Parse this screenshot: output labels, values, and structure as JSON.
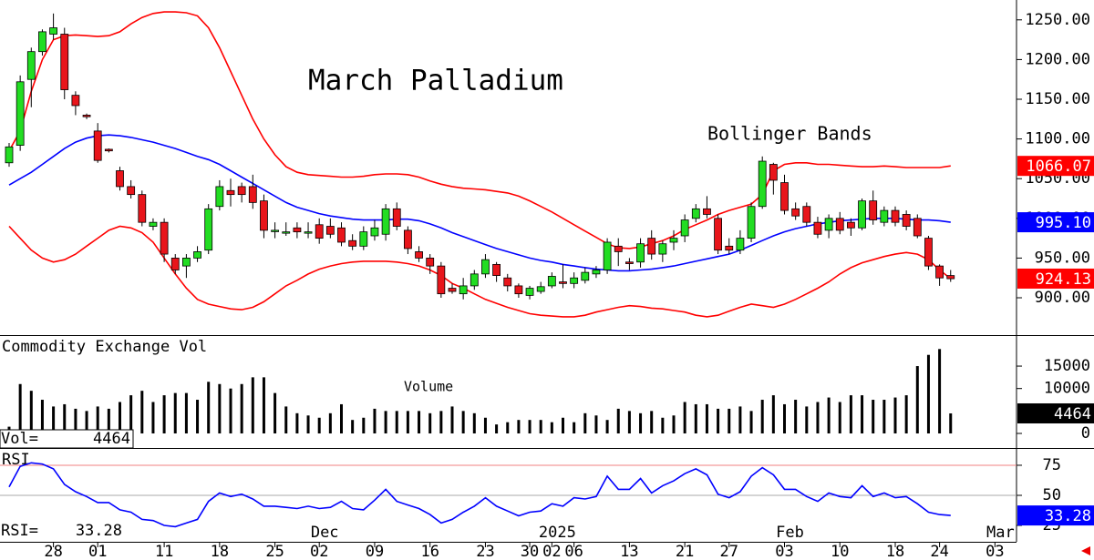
{
  "chart_data": [
    {
      "type": "candlestick",
      "title": "March Palladium",
      "annotation": "Bollinger Bands",
      "up_color": "#22dd22",
      "down_color": "#e8151b",
      "open": [
        1070,
        1092,
        1175,
        1210,
        1232,
        1232,
        1155,
        1130,
        1110,
        1087,
        1060,
        1040,
        1030,
        990,
        995,
        950,
        940,
        950,
        960,
        1015,
        1035,
        1040,
        1040,
        1022,
        985,
        983,
        988,
        983,
        992,
        990,
        988,
        972,
        965,
        978,
        980,
        1012,
        985,
        958,
        950,
        940,
        912,
        905,
        915,
        930,
        942,
        925,
        915,
        903,
        908,
        915,
        920,
        918,
        922,
        930,
        935,
        965,
        945,
        945,
        975,
        955,
        970,
        978,
        1000,
        1012,
        1000,
        965,
        960,
        975,
        1015,
        1068,
        1045,
        1012,
        1015,
        995,
        985,
        1000,
        995,
        988,
        1022,
        995,
        1010,
        1005,
        1000,
        975,
        940,
        928,
        null,
        null,
        null,
        null
      ],
      "high": [
        1095,
        1180,
        1215,
        1238,
        1258,
        1240,
        1160,
        1132,
        1120,
        1088,
        1065,
        1048,
        1035,
        1000,
        1000,
        955,
        955,
        965,
        1018,
        1048,
        1050,
        1045,
        1055,
        1030,
        995,
        995,
        995,
        995,
        1000,
        1000,
        995,
        980,
        990,
        998,
        1018,
        1020,
        990,
        965,
        955,
        945,
        918,
        925,
        935,
        955,
        945,
        930,
        918,
        915,
        920,
        932,
        942,
        932,
        938,
        940,
        975,
        975,
        950,
        975,
        985,
        972,
        985,
        1005,
        1018,
        1028,
        1005,
        975,
        985,
        1020,
        1078,
        1070,
        1055,
        1020,
        1020,
        1002,
        1005,
        1008,
        1000,
        1025,
        1035,
        1015,
        1015,
        1010,
        1005,
        978,
        942,
        935,
        null,
        null,
        null,
        null
      ],
      "low": [
        1065,
        1085,
        1140,
        1205,
        1225,
        1150,
        1130,
        1125,
        1070,
        1083,
        1035,
        1025,
        990,
        985,
        945,
        930,
        925,
        945,
        955,
        1010,
        1015,
        1020,
        1012,
        975,
        975,
        978,
        975,
        975,
        968,
        975,
        965,
        960,
        960,
        972,
        972,
        985,
        955,
        945,
        930,
        900,
        905,
        898,
        910,
        925,
        920,
        908,
        900,
        898,
        905,
        912,
        912,
        912,
        918,
        925,
        930,
        940,
        935,
        938,
        948,
        945,
        960,
        970,
        995,
        1000,
        955,
        955,
        955,
        970,
        1012,
        1030,
        1005,
        998,
        990,
        975,
        975,
        980,
        978,
        985,
        992,
        990,
        990,
        985,
        975,
        935,
        915,
        920,
        null,
        null,
        null,
        null
      ],
      "close": [
        1090,
        1172,
        1210,
        1235,
        1240,
        1162,
        1142,
        1128,
        1073,
        1085,
        1040,
        1030,
        995,
        995,
        955,
        935,
        950,
        958,
        1012,
        1040,
        1030,
        1030,
        1020,
        985,
        985,
        983,
        983,
        983,
        975,
        980,
        970,
        965,
        983,
        988,
        1012,
        990,
        962,
        950,
        940,
        905,
        908,
        915,
        930,
        948,
        928,
        915,
        905,
        912,
        914,
        927,
        918,
        925,
        932,
        935,
        970,
        958,
        943,
        968,
        955,
        968,
        975,
        998,
        1012,
        1005,
        960,
        960,
        975,
        1015,
        1072,
        1048,
        1010,
        1003,
        995,
        980,
        1000,
        985,
        988,
        1022,
        998,
        1010,
        995,
        990,
        978,
        940,
        925,
        924,
        null,
        null,
        null,
        null
      ],
      "series": [
        {
          "color": "#ff0000",
          "last_label": "1066.07",
          "values": [
            1085,
            1110,
            1160,
            1200,
            1225,
            1230,
            1231,
            1230,
            1229,
            1230,
            1235,
            1245,
            1253,
            1258,
            1260,
            1260,
            1259,
            1255,
            1240,
            1215,
            1185,
            1155,
            1125,
            1100,
            1080,
            1065,
            1058,
            1055,
            1054,
            1053,
            1052,
            1052,
            1053,
            1055,
            1056,
            1056,
            1055,
            1052,
            1047,
            1043,
            1040,
            1038,
            1037,
            1036,
            1034,
            1032,
            1028,
            1022,
            1015,
            1008,
            1000,
            992,
            984,
            976,
            968,
            963,
            962,
            964,
            968,
            972,
            978,
            986,
            992,
            998,
            1005,
            1010,
            1014,
            1018,
            1030,
            1060,
            1068,
            1070,
            1070,
            1068,
            1068,
            1067,
            1066,
            1065,
            1065,
            1066,
            1065,
            1064,
            1064,
            1064,
            1064,
            1066.07,
            null,
            null,
            null,
            null
          ]
        },
        {
          "color": "#0000ff",
          "last_label": "995.10",
          "values": [
            1042,
            1050,
            1058,
            1068,
            1078,
            1088,
            1096,
            1101,
            1104,
            1105,
            1104,
            1102,
            1099,
            1096,
            1092,
            1088,
            1083,
            1078,
            1074,
            1068,
            1060,
            1052,
            1044,
            1036,
            1028,
            1020,
            1014,
            1010,
            1006,
            1003,
            1001,
            999,
            998,
            998,
            998,
            999,
            999,
            997,
            993,
            988,
            982,
            977,
            972,
            967,
            962,
            958,
            954,
            950,
            947,
            945,
            942,
            940,
            938,
            936,
            935,
            934,
            934,
            935,
            936,
            938,
            940,
            943,
            946,
            949,
            952,
            955,
            960,
            966,
            972,
            978,
            983,
            987,
            990,
            993,
            995,
            997,
            998,
            999,
            1000,
            1000,
            1000,
            999,
            998,
            998,
            997,
            995.1,
            null,
            null,
            null,
            null
          ]
        },
        {
          "color": "#ff0000",
          "last_label": "924.13",
          "values": [
            990,
            975,
            960,
            950,
            945,
            948,
            955,
            965,
            975,
            985,
            990,
            988,
            982,
            970,
            950,
            930,
            912,
            898,
            892,
            889,
            886,
            885,
            888,
            895,
            905,
            915,
            922,
            930,
            936,
            940,
            943,
            945,
            946,
            946,
            946,
            945,
            943,
            940,
            935,
            928,
            918,
            912,
            905,
            898,
            893,
            888,
            884,
            880,
            878,
            877,
            876,
            876,
            878,
            882,
            885,
            888,
            890,
            889,
            887,
            886,
            884,
            882,
            878,
            876,
            878,
            883,
            888,
            892,
            890,
            888,
            892,
            898,
            905,
            912,
            920,
            930,
            938,
            944,
            948,
            952,
            955,
            957,
            955,
            948,
            935,
            924.13,
            null,
            null,
            null,
            null
          ]
        }
      ],
      "ylim": [
        853,
        1275
      ],
      "yticks": [
        {
          "value": 900,
          "label": "900.00"
        },
        {
          "value": 950,
          "label": "950.00"
        },
        {
          "value": 1000,
          "label": "1000.00"
        },
        {
          "value": 1050,
          "label": "1050.00"
        },
        {
          "value": 1100,
          "label": "1100.00"
        },
        {
          "value": 1150,
          "label": "1150.00"
        },
        {
          "value": 1200,
          "label": "1200.00"
        },
        {
          "value": 1250,
          "label": "1250.00"
        }
      ]
    },
    {
      "type": "bar",
      "title": "Commodity Exchange Vol",
      "annotation": "Volume",
      "readout_label": "Vol=",
      "color": "#000000",
      "values": [
        1500,
        11000,
        9500,
        7500,
        6000,
        6500,
        5500,
        5000,
        6000,
        5500,
        7000,
        8500,
        9500,
        7000,
        8500,
        9000,
        9000,
        7500,
        11500,
        11000,
        10000,
        11000,
        12500,
        12500,
        9000,
        6000,
        4500,
        4000,
        3500,
        4500,
        6500,
        3000,
        3500,
        5500,
        5000,
        5000,
        5000,
        5000,
        4500,
        5000,
        6000,
        5000,
        4500,
        3500,
        2000,
        2500,
        3000,
        3000,
        3000,
        2500,
        3500,
        2500,
        4500,
        4000,
        3000,
        5500,
        5000,
        4500,
        5000,
        3500,
        4000,
        7000,
        6500,
        6500,
        5500,
        5500,
        6000,
        5000,
        7500,
        8500,
        6500,
        7500,
        6000,
        7000,
        8000,
        7000,
        8500,
        8500,
        7500,
        7500,
        8000,
        8500,
        15000,
        17500,
        18800,
        4464,
        null,
        null,
        null,
        null
      ],
      "ylim": [
        0,
        21500
      ],
      "yticks": [
        0,
        10000,
        15000
      ]
    },
    {
      "type": "line",
      "title": "RSI",
      "readout_label": "RSI=",
      "color": "#0000ff",
      "values": [
        57,
        74,
        77,
        76,
        72,
        59,
        53,
        49,
        44,
        44,
        38,
        36,
        30,
        29,
        25,
        24,
        27,
        30,
        45,
        52,
        49,
        51,
        47,
        41,
        41,
        40,
        39,
        41,
        39,
        40,
        45,
        39,
        38,
        46,
        55,
        45,
        42,
        39,
        34,
        27,
        30,
        36,
        41,
        48,
        41,
        37,
        33,
        36,
        37,
        43,
        41,
        48,
        47,
        49,
        66,
        55,
        55,
        64,
        52,
        58,
        62,
        68,
        72,
        67,
        51,
        48,
        53,
        66,
        73,
        67,
        55,
        55,
        49,
        45,
        52,
        49,
        48,
        58,
        49,
        52,
        48,
        49,
        43,
        36,
        34,
        33.28,
        null,
        null,
        null,
        null
      ],
      "ylim": [
        11.4,
        88.6
      ],
      "yticks": [
        25,
        50,
        75
      ],
      "grid_colors": [
        null,
        "#aaaaaa",
        "#f08080"
      ],
      "categories": [
        null,
        null,
        null,
        null,
        "28",
        null,
        null,
        null,
        "01",
        null,
        null,
        null,
        null,
        null,
        "11",
        null,
        null,
        null,
        null,
        "18",
        null,
        null,
        null,
        null,
        "25",
        null,
        null,
        null,
        "02",
        null,
        null,
        null,
        null,
        "09",
        null,
        null,
        null,
        null,
        "16",
        null,
        null,
        null,
        null,
        "23",
        null,
        null,
        null,
        "30",
        null,
        "02",
        null,
        "06",
        null,
        null,
        null,
        null,
        "13",
        null,
        null,
        null,
        null,
        "21",
        null,
        null,
        null,
        "27",
        null,
        null,
        null,
        null,
        "03",
        null,
        null,
        null,
        null,
        "10",
        null,
        null,
        null,
        null,
        "18",
        null,
        null,
        null,
        "24",
        null,
        null,
        null,
        null,
        "03"
      ],
      "months": [
        null,
        null,
        null,
        null,
        null,
        null,
        null,
        null,
        null,
        null,
        null,
        null,
        null,
        null,
        null,
        null,
        null,
        null,
        null,
        null,
        null,
        null,
        null,
        null,
        null,
        null,
        null,
        null,
        "Dec",
        null,
        null,
        null,
        null,
        null,
        null,
        null,
        null,
        null,
        null,
        null,
        null,
        null,
        null,
        null,
        null,
        null,
        null,
        null,
        null,
        "2025",
        null,
        null,
        null,
        null,
        null,
        null,
        null,
        null,
        null,
        null,
        null,
        null,
        null,
        null,
        null,
        null,
        null,
        null,
        null,
        null,
        "Feb",
        null,
        null,
        null,
        null,
        null,
        null,
        null,
        null,
        null,
        null,
        null,
        null,
        null,
        null,
        null,
        null,
        null,
        null,
        "Mar"
      ]
    }
  ]
}
